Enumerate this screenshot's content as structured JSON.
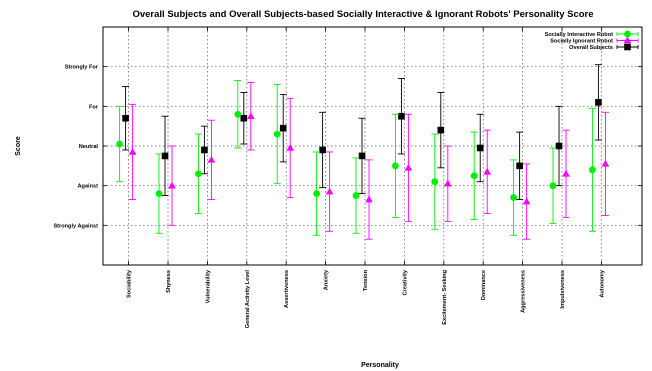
{
  "chart_data": {
    "type": "scatter",
    "title": "Overall Subjects and Overall Subjects-based Socially Interactive & Ignorant Robots' Personality Score",
    "xlabel": "Personality",
    "ylabel": "Score",
    "categories": [
      "Sociability",
      "Shyness",
      "Vulnerability",
      "General Activity Level",
      "Assertiveness",
      "Anxiety",
      "Tension",
      "Creativity",
      "Excitement- Seeking",
      "Dominance",
      "Aggressiveness",
      "Impulsiveness",
      "Autonomy"
    ],
    "y_ticks": [
      {
        "value": 1,
        "label": "Strongly Against"
      },
      {
        "value": 2,
        "label": "Against"
      },
      {
        "value": 3,
        "label": "Neutral"
      },
      {
        "value": 4,
        "label": "For"
      },
      {
        "value": 5,
        "label": "Strongly For"
      }
    ],
    "ylim": [
      0,
      6
    ],
    "grid": true,
    "legend_position": "top-right",
    "error_bars": true,
    "series": [
      {
        "name": "Socially Interactive Robot",
        "color": "#00ee00",
        "marker": "circle",
        "values": [
          3.05,
          1.8,
          2.3,
          3.8,
          3.3,
          1.8,
          1.75,
          2.5,
          2.1,
          2.25,
          1.7,
          2.0,
          2.4
        ],
        "errors": [
          0.95,
          1.0,
          1.0,
          0.85,
          1.25,
          1.05,
          0.95,
          1.3,
          1.2,
          1.1,
          0.95,
          0.95,
          1.55
        ]
      },
      {
        "name": "Socially Ignorant Robot",
        "color": "#ff00ff",
        "marker": "triangle",
        "values": [
          2.85,
          2.0,
          2.65,
          3.75,
          2.95,
          1.85,
          1.65,
          2.45,
          2.05,
          2.35,
          1.6,
          2.3,
          2.55
        ],
        "errors": [
          1.2,
          1.0,
          1.0,
          0.85,
          1.25,
          1.0,
          1.0,
          1.35,
          0.95,
          1.05,
          0.95,
          1.1,
          1.3
        ]
      },
      {
        "name": "Overall Subjects",
        "color": "#000000",
        "marker": "square",
        "values": [
          3.7,
          2.75,
          2.9,
          3.7,
          3.45,
          2.9,
          2.75,
          3.75,
          3.4,
          2.95,
          2.5,
          3.0,
          4.1
        ],
        "errors": [
          0.8,
          1.0,
          0.6,
          0.65,
          0.85,
          0.95,
          0.95,
          0.95,
          0.95,
          0.85,
          0.85,
          1.0,
          0.95
        ]
      }
    ]
  }
}
